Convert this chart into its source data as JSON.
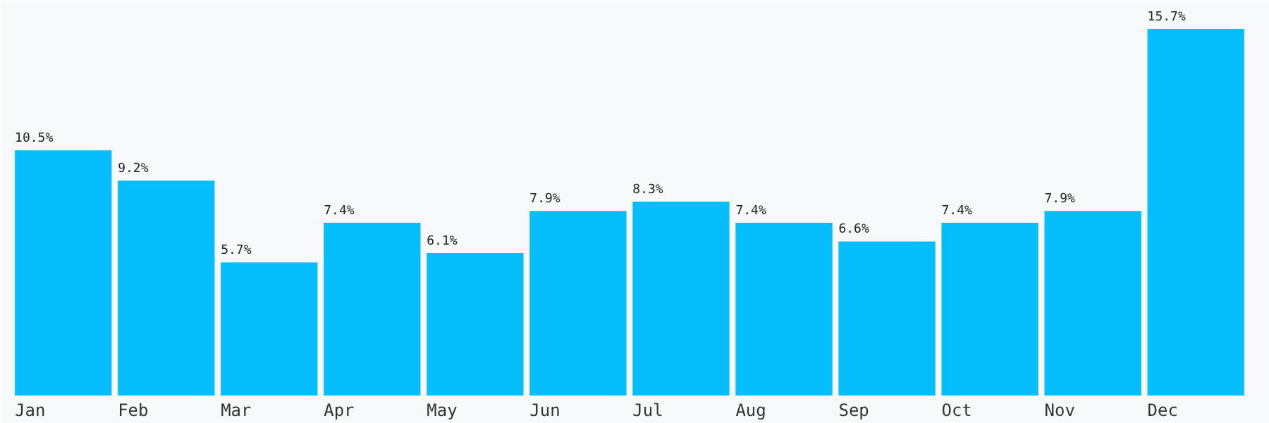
{
  "chart_data": {
    "type": "bar",
    "categories": [
      "Jan",
      "Feb",
      "Mar",
      "Apr",
      "May",
      "Jun",
      "Jul",
      "Aug",
      "Sep",
      "Oct",
      "Nov",
      "Dec"
    ],
    "values": [
      10.5,
      9.2,
      5.7,
      7.4,
      6.1,
      7.9,
      8.3,
      7.4,
      6.6,
      7.4,
      7.9,
      15.7
    ],
    "value_labels": [
      "10.5%",
      "9.2%",
      "5.7%",
      "7.4%",
      "6.1%",
      "7.9%",
      "8.3%",
      "7.4%",
      "6.6%",
      "7.4%",
      "7.9%",
      "15.7%"
    ],
    "color": "#05befb"
  }
}
